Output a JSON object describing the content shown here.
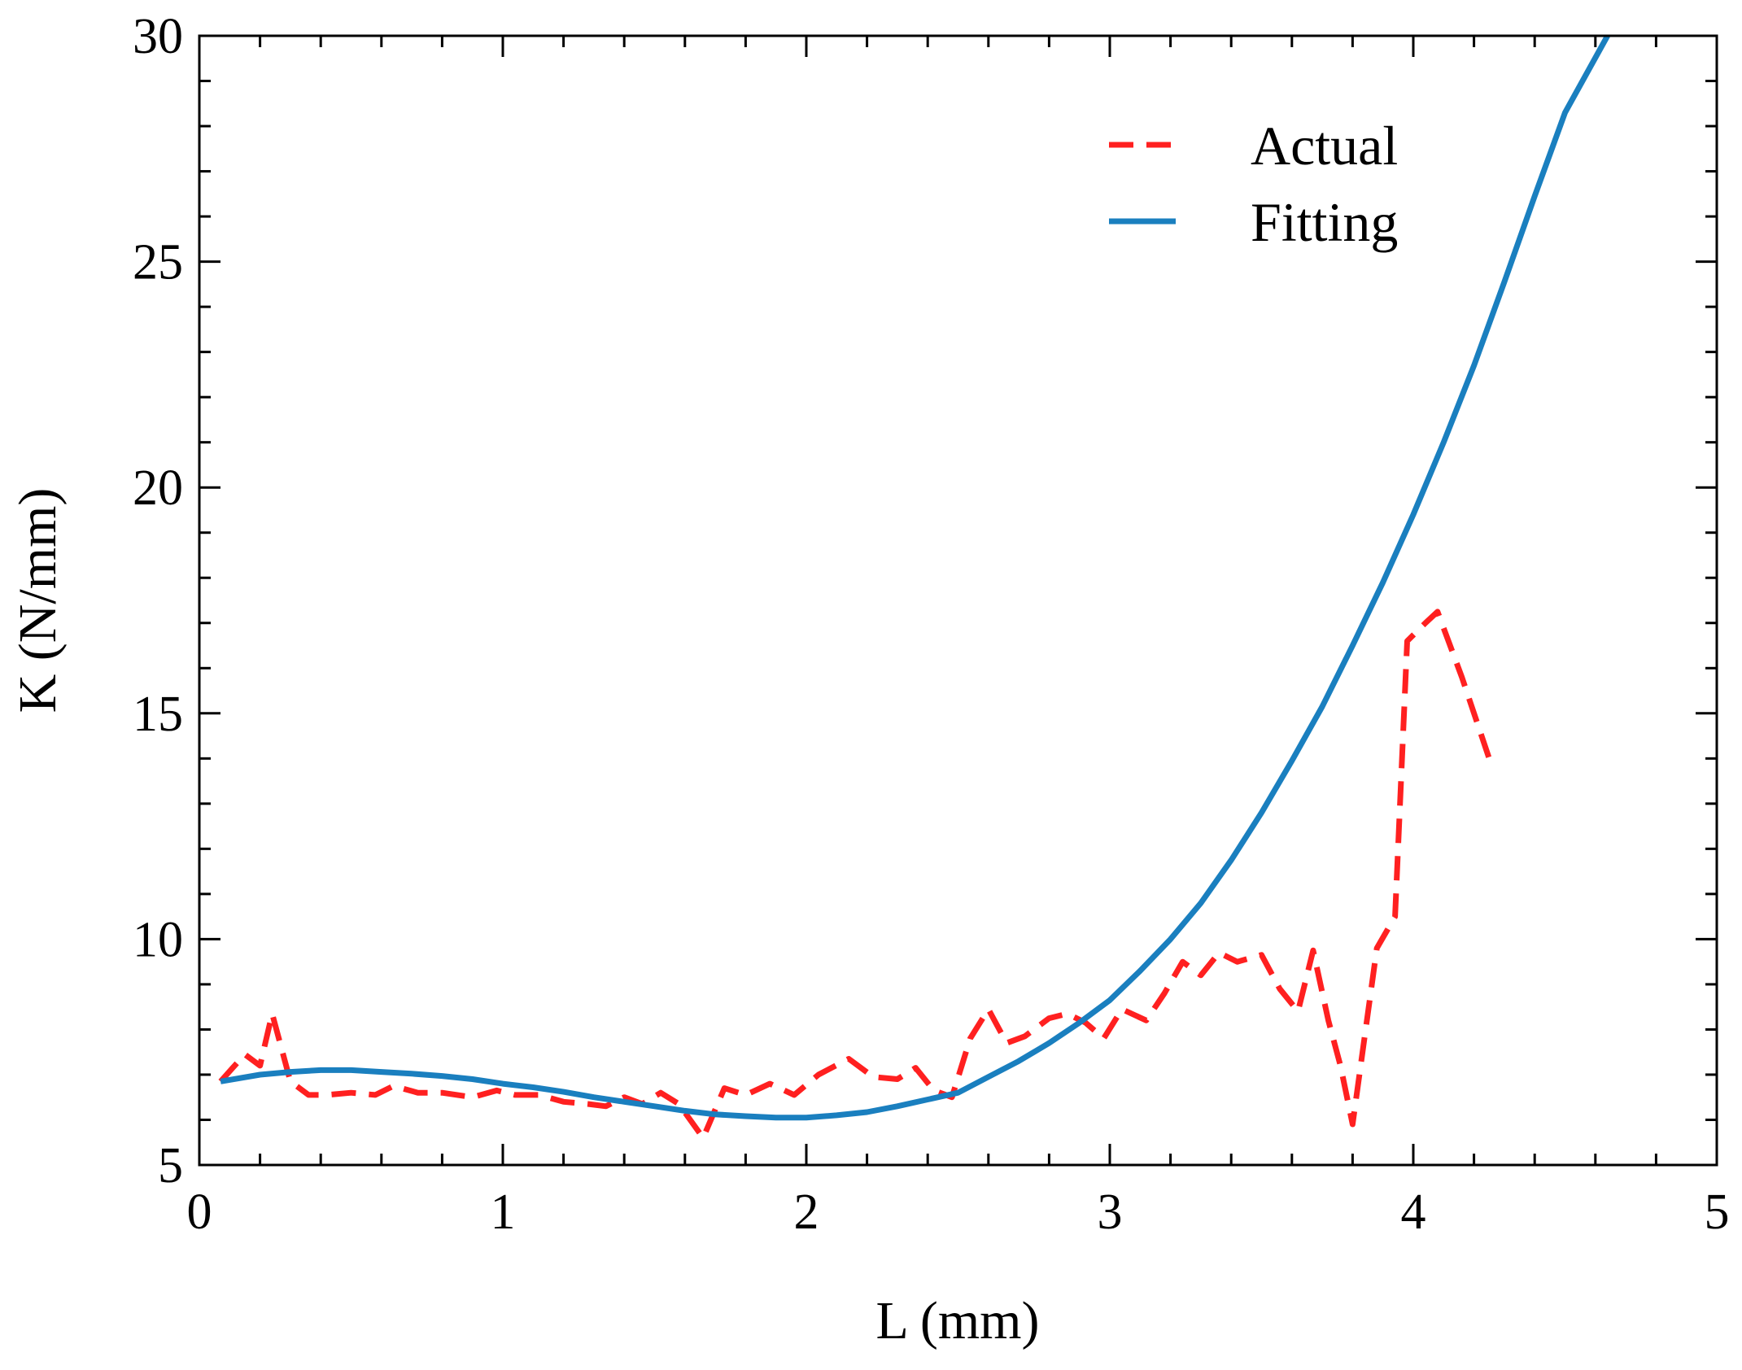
{
  "chart_data": {
    "type": "line",
    "title": "",
    "xlabel": "L (mm)",
    "ylabel": "K (N/mm)",
    "xlim": [
      0,
      5
    ],
    "ylim": [
      5,
      30
    ],
    "xticks": [
      0,
      1,
      2,
      3,
      4,
      5
    ],
    "yticks": [
      5,
      10,
      15,
      20,
      25,
      30
    ],
    "x_minor_step": 0.2,
    "y_minor_step": 1,
    "grid": false,
    "legend_position": "top-right",
    "series": [
      {
        "name": "Actual",
        "color": "#ff2020",
        "style": "dashed",
        "points": [
          [
            0.07,
            6.85
          ],
          [
            0.11,
            7.15
          ],
          [
            0.15,
            7.45
          ],
          [
            0.2,
            7.2
          ],
          [
            0.24,
            8.35
          ],
          [
            0.3,
            6.85
          ],
          [
            0.36,
            6.55
          ],
          [
            0.42,
            6.55
          ],
          [
            0.5,
            6.6
          ],
          [
            0.58,
            6.55
          ],
          [
            0.64,
            6.75
          ],
          [
            0.72,
            6.6
          ],
          [
            0.8,
            6.6
          ],
          [
            0.9,
            6.5
          ],
          [
            0.98,
            6.65
          ],
          [
            1.04,
            6.55
          ],
          [
            1.12,
            6.55
          ],
          [
            1.2,
            6.4
          ],
          [
            1.28,
            6.35
          ],
          [
            1.34,
            6.3
          ],
          [
            1.4,
            6.5
          ],
          [
            1.46,
            6.35
          ],
          [
            1.52,
            6.6
          ],
          [
            1.58,
            6.35
          ],
          [
            1.66,
            5.6
          ],
          [
            1.73,
            6.7
          ],
          [
            1.8,
            6.55
          ],
          [
            1.88,
            6.8
          ],
          [
            1.96,
            6.55
          ],
          [
            2.04,
            7.0
          ],
          [
            2.14,
            7.35
          ],
          [
            2.22,
            6.95
          ],
          [
            2.3,
            6.9
          ],
          [
            2.36,
            7.15
          ],
          [
            2.42,
            6.65
          ],
          [
            2.48,
            6.5
          ],
          [
            2.54,
            7.8
          ],
          [
            2.6,
            8.45
          ],
          [
            2.66,
            7.7
          ],
          [
            2.72,
            7.85
          ],
          [
            2.8,
            8.25
          ],
          [
            2.86,
            8.35
          ],
          [
            2.92,
            8.15
          ],
          [
            2.98,
            7.8
          ],
          [
            3.04,
            8.45
          ],
          [
            3.12,
            8.2
          ],
          [
            3.18,
            8.8
          ],
          [
            3.24,
            9.5
          ],
          [
            3.3,
            9.2
          ],
          [
            3.36,
            9.7
          ],
          [
            3.42,
            9.5
          ],
          [
            3.5,
            9.65
          ],
          [
            3.56,
            8.9
          ],
          [
            3.62,
            8.4
          ],
          [
            3.67,
            9.75
          ],
          [
            3.72,
            8.2
          ],
          [
            3.76,
            7.2
          ],
          [
            3.8,
            5.9
          ],
          [
            3.88,
            9.8
          ],
          [
            3.94,
            10.5
          ],
          [
            3.98,
            16.6
          ],
          [
            4.04,
            17.0
          ],
          [
            4.08,
            17.25
          ],
          [
            4.16,
            15.8
          ],
          [
            4.26,
            13.8
          ]
        ]
      },
      {
        "name": "Fitting",
        "color": "#1a7fbf",
        "style": "solid",
        "points": [
          [
            0.07,
            6.85
          ],
          [
            0.2,
            7.0
          ],
          [
            0.3,
            7.06
          ],
          [
            0.4,
            7.1
          ],
          [
            0.5,
            7.1
          ],
          [
            0.6,
            7.06
          ],
          [
            0.7,
            7.02
          ],
          [
            0.8,
            6.97
          ],
          [
            0.9,
            6.9
          ],
          [
            1.0,
            6.8
          ],
          [
            1.1,
            6.72
          ],
          [
            1.2,
            6.62
          ],
          [
            1.3,
            6.5
          ],
          [
            1.4,
            6.4
          ],
          [
            1.5,
            6.3
          ],
          [
            1.6,
            6.2
          ],
          [
            1.7,
            6.12
          ],
          [
            1.8,
            6.08
          ],
          [
            1.9,
            6.05
          ],
          [
            2.0,
            6.05
          ],
          [
            2.1,
            6.1
          ],
          [
            2.2,
            6.17
          ],
          [
            2.3,
            6.3
          ],
          [
            2.4,
            6.45
          ],
          [
            2.5,
            6.6
          ],
          [
            2.6,
            6.95
          ],
          [
            2.7,
            7.3
          ],
          [
            2.8,
            7.7
          ],
          [
            2.9,
            8.15
          ],
          [
            3.0,
            8.65
          ],
          [
            3.1,
            9.3
          ],
          [
            3.2,
            10.0
          ],
          [
            3.3,
            10.8
          ],
          [
            3.4,
            11.75
          ],
          [
            3.5,
            12.8
          ],
          [
            3.6,
            13.95
          ],
          [
            3.7,
            15.15
          ],
          [
            3.8,
            16.5
          ],
          [
            3.9,
            17.9
          ],
          [
            4.0,
            19.4
          ],
          [
            4.1,
            21.0
          ],
          [
            4.2,
            22.7
          ],
          [
            4.3,
            24.55
          ],
          [
            4.4,
            26.45
          ],
          [
            4.5,
            28.3
          ],
          [
            4.64,
            30.0
          ]
        ]
      }
    ]
  }
}
